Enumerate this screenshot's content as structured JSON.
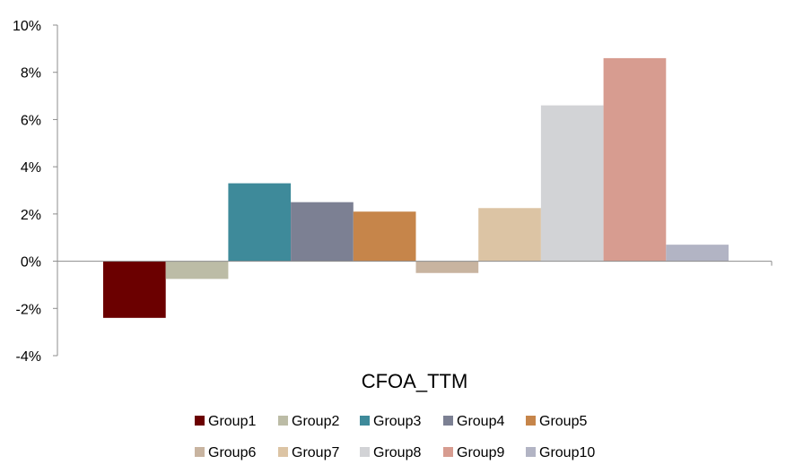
{
  "chart_data": {
    "type": "bar",
    "categories": [
      "CFOA_TTM"
    ],
    "series": [
      {
        "name": "Group1",
        "values": [
          -0.024
        ],
        "color": "#6b0000"
      },
      {
        "name": "Group2",
        "values": [
          -0.0075
        ],
        "color": "#bcbca6"
      },
      {
        "name": "Group3",
        "values": [
          0.033
        ],
        "color": "#3e8a9a"
      },
      {
        "name": "Group4",
        "values": [
          0.025
        ],
        "color": "#7c8093"
      },
      {
        "name": "Group5",
        "values": [
          0.021
        ],
        "color": "#c6854a"
      },
      {
        "name": "Group6",
        "values": [
          -0.005
        ],
        "color": "#c8b4a0"
      },
      {
        "name": "Group7",
        "values": [
          0.0225
        ],
        "color": "#dcc4a4"
      },
      {
        "name": "Group8",
        "values": [
          0.066
        ],
        "color": "#d2d3d6"
      },
      {
        "name": "Group9",
        "values": [
          0.086
        ],
        "color": "#d79c90"
      },
      {
        "name": "Group10",
        "values": [
          0.007
        ],
        "color": "#b2b4c4"
      }
    ],
    "ylim": [
      -0.04,
      0.1
    ],
    "yticks": [
      {
        "value": -0.04,
        "label": "-4%"
      },
      {
        "value": -0.02,
        "label": "-2%"
      },
      {
        "value": 0.0,
        "label": "0%"
      },
      {
        "value": 0.02,
        "label": "2%"
      },
      {
        "value": 0.04,
        "label": "4%"
      },
      {
        "value": 0.06,
        "label": "6%"
      },
      {
        "value": 0.08,
        "label": "8%"
      },
      {
        "value": 0.1,
        "label": "10%"
      }
    ],
    "title": "",
    "xlabel": "",
    "ylabel": "",
    "grid": false,
    "legend": "bottom"
  }
}
